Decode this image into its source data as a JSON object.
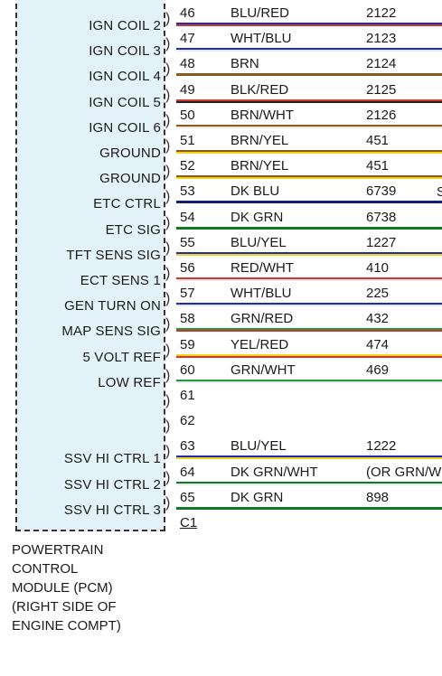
{
  "pins": [
    {
      "label": "IGN COIL 2",
      "pin": "46",
      "wire": "BLU/RED",
      "circuit": "2122",
      "stripe": "#1b2fb5",
      "base": "#d2372f",
      "kind": "striped"
    },
    {
      "label": "IGN COIL 3",
      "pin": "47",
      "wire": "WHT/BLU",
      "circuit": "2123",
      "stripe": "#1b2fb5",
      "base": "#ffffff",
      "kind": "striped"
    },
    {
      "label": "IGN COIL 4",
      "pin": "48",
      "wire": "BRN",
      "circuit": "2124",
      "stripe": "#8a5a1a",
      "base": "#8a5a1a",
      "kind": "solid"
    },
    {
      "label": "IGN COIL 5",
      "pin": "49",
      "wire": "BLK/RED",
      "circuit": "2125",
      "stripe": "#d2372f",
      "base": "#222222",
      "kind": "striped"
    },
    {
      "label": "IGN COIL 6",
      "pin": "50",
      "wire": "BRN/WHT",
      "circuit": "2126",
      "stripe": "#8a5a1a",
      "base": "#ffffff",
      "kind": "striped"
    },
    {
      "label": "GROUND",
      "pin": "51",
      "wire": "BRN/YEL",
      "circuit": "451",
      "stripe": "#8a5a1a",
      "base": "#f2d21a",
      "kind": "striped"
    },
    {
      "label": "GROUND",
      "pin": "52",
      "wire": "BRN/YEL",
      "circuit": "451",
      "stripe": "#8a5a1a",
      "base": "#f2d21a",
      "kind": "striped"
    },
    {
      "label": "ETC CTRL",
      "pin": "53",
      "wire": "DK BLU",
      "circuit": "6739",
      "stripe": "#10207a",
      "base": "#10207a",
      "kind": "solid"
    },
    {
      "label": "ETC SIG",
      "pin": "54",
      "wire": "DK GRN",
      "circuit": "6738",
      "stripe": "#0d7a25",
      "base": "#0d7a25",
      "kind": "solid"
    },
    {
      "label": "TFT SENS SIG",
      "pin": "55",
      "wire": "BLU/YEL",
      "circuit": "1227",
      "stripe": "#1b2fb5",
      "base": "#f2d21a",
      "kind": "striped"
    },
    {
      "label": "ECT SENS 1",
      "pin": "56",
      "wire": "RED/WHT",
      "circuit": "410",
      "stripe": "#d2372f",
      "base": "#ffffff",
      "kind": "striped"
    },
    {
      "label": "GEN TURN ON",
      "pin": "57",
      "wire": "WHT/BLU",
      "circuit": "225",
      "stripe": "#1b2fb5",
      "base": "#ffffff",
      "kind": "striped"
    },
    {
      "label": "MAP SENS SIG",
      "pin": "58",
      "wire": "GRN/RED",
      "circuit": "432",
      "stripe": "#1e9a3a",
      "base": "#d2372f",
      "kind": "striped"
    },
    {
      "label": "5 VOLT REF",
      "pin": "59",
      "wire": "YEL/RED",
      "circuit": "474",
      "stripe": "#f2d21a",
      "base": "#d2372f",
      "kind": "striped"
    },
    {
      "label": "LOW REF",
      "pin": "60",
      "wire": "GRN/WHT",
      "circuit": "469",
      "stripe": "#1e9a3a",
      "base": "#ffffff",
      "kind": "striped"
    },
    {
      "label": "",
      "pin": "61",
      "wire": "",
      "circuit": "",
      "kind": "none"
    },
    {
      "label": "",
      "pin": "62",
      "wire": "",
      "circuit": "",
      "kind": "none"
    },
    {
      "label": "SSV HI CTRL 1",
      "pin": "63",
      "wire": "BLU/YEL",
      "circuit": "1222",
      "stripe": "#1b2fb5",
      "base": "#f2d21a",
      "kind": "striped"
    },
    {
      "label": "SSV HI CTRL 2",
      "pin": "64",
      "wire": "DK GRN/WHT",
      "circuit": "(OR GRN/WHT",
      "stripe": "#0d7a25",
      "base": "#ffffff",
      "kind": "striped"
    },
    {
      "label": "SSV HI CTRL 3",
      "pin": "65",
      "wire": "DK GRN",
      "circuit": "898",
      "stripe": "#0d7a25",
      "base": "#0d7a25",
      "kind": "solid"
    }
  ],
  "connector": "C1",
  "edge_text": "S",
  "module_caption": [
    "POWERTRAIN",
    "CONTROL",
    "MODULE (PCM)",
    "(RIGHT SIDE OF",
    "ENGINE COMPT)"
  ]
}
